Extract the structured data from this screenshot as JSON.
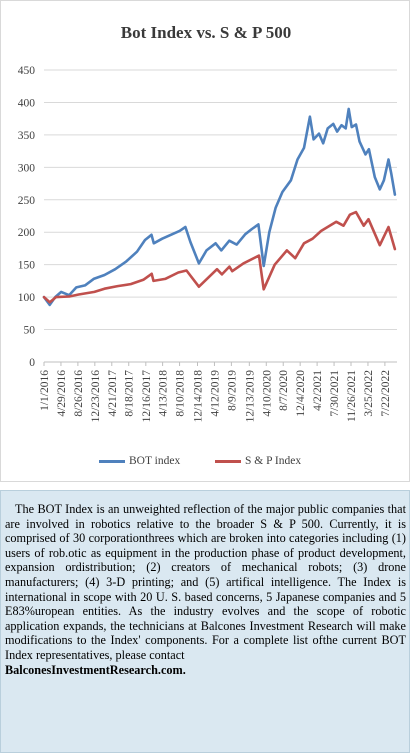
{
  "chart_data": {
    "type": "line",
    "title": "Bot Index vs. S & P 500",
    "xlabel": "",
    "ylabel": "",
    "ylim": [
      0,
      450
    ],
    "yticks": [
      0,
      50,
      100,
      150,
      200,
      250,
      300,
      350,
      400,
      450
    ],
    "grid": true,
    "legend_position": "bottom",
    "x_range": [
      "2016-01-01",
      "2022-10-15"
    ],
    "x_ticks": [
      "1/1/2016",
      "4/29/2016",
      "8/26/2016",
      "12/23/2016",
      "4/21/2017",
      "8/18/2017",
      "12/16/2017",
      "4/13/2018",
      "8/10/2018",
      "12/14/2018",
      "4/12/2019",
      "8/9/2019",
      "12/13/2019",
      "4/10/2020",
      "8/7/2020",
      "12/4/2020",
      "4/2/2021",
      "7/30/2021",
      "11/26/2021",
      "3/25/2022",
      "7/22/2022"
    ],
    "series": [
      {
        "name": "BOT index",
        "color": "#4f81bd",
        "points": [
          [
            "2016-01-01",
            100
          ],
          [
            "2016-02-10",
            88
          ],
          [
            "2016-03-20",
            100
          ],
          [
            "2016-05-01",
            108
          ],
          [
            "2016-06-25",
            103
          ],
          [
            "2016-08-15",
            115
          ],
          [
            "2016-10-15",
            118
          ],
          [
            "2016-12-15",
            128
          ],
          [
            "2017-03-01",
            134
          ],
          [
            "2017-05-15",
            143
          ],
          [
            "2017-08-01",
            155
          ],
          [
            "2017-10-15",
            170
          ],
          [
            "2017-12-10",
            188
          ],
          [
            "2018-01-25",
            196
          ],
          [
            "2018-02-10",
            183
          ],
          [
            "2018-04-10",
            190
          ],
          [
            "2018-06-10",
            196
          ],
          [
            "2018-08-10",
            202
          ],
          [
            "2018-09-20",
            208
          ],
          [
            "2018-10-25",
            185
          ],
          [
            "2018-12-24",
            152
          ],
          [
            "2019-02-15",
            172
          ],
          [
            "2019-04-20",
            183
          ],
          [
            "2019-05-30",
            172
          ],
          [
            "2019-07-25",
            187
          ],
          [
            "2019-09-15",
            181
          ],
          [
            "2019-11-15",
            197
          ],
          [
            "2019-12-31",
            205
          ],
          [
            "2020-02-15",
            212
          ],
          [
            "2020-03-23",
            148
          ],
          [
            "2020-05-01",
            200
          ],
          [
            "2020-06-15",
            238
          ],
          [
            "2020-08-01",
            262
          ],
          [
            "2020-09-30",
            280
          ],
          [
            "2020-11-15",
            312
          ],
          [
            "2020-12-31",
            330
          ],
          [
            "2021-02-10",
            378
          ],
          [
            "2021-03-08",
            343
          ],
          [
            "2021-04-15",
            352
          ],
          [
            "2021-05-15",
            337
          ],
          [
            "2021-06-15",
            360
          ],
          [
            "2021-07-25",
            367
          ],
          [
            "2021-08-20",
            355
          ],
          [
            "2021-09-20",
            365
          ],
          [
            "2021-10-20",
            360
          ],
          [
            "2021-11-10",
            390
          ],
          [
            "2021-12-01",
            362
          ],
          [
            "2021-12-31",
            366
          ],
          [
            "2022-01-25",
            340
          ],
          [
            "2022-03-08",
            320
          ],
          [
            "2022-04-01",
            328
          ],
          [
            "2022-05-12",
            285
          ],
          [
            "2022-06-16",
            266
          ],
          [
            "2022-07-15",
            280
          ],
          [
            "2022-08-16",
            312
          ],
          [
            "2022-09-05",
            290
          ],
          [
            "2022-09-30",
            258
          ]
        ]
      },
      {
        "name": "S & P Index",
        "color": "#c0504d",
        "points": [
          [
            "2016-01-01",
            100
          ],
          [
            "2016-02-11",
            92
          ],
          [
            "2016-03-25",
            100
          ],
          [
            "2016-06-27",
            101
          ],
          [
            "2016-09-01",
            104
          ],
          [
            "2016-12-20",
            108
          ],
          [
            "2017-03-01",
            113
          ],
          [
            "2017-06-01",
            117
          ],
          [
            "2017-09-01",
            120
          ],
          [
            "2017-12-01",
            127
          ],
          [
            "2018-01-26",
            136
          ],
          [
            "2018-02-08",
            125
          ],
          [
            "2018-05-01",
            128
          ],
          [
            "2018-08-01",
            138
          ],
          [
            "2018-09-28",
            141
          ],
          [
            "2018-12-24",
            116
          ],
          [
            "2019-04-30",
            143
          ],
          [
            "2019-06-03",
            135
          ],
          [
            "2019-07-26",
            147
          ],
          [
            "2019-08-15",
            140
          ],
          [
            "2019-11-01",
            152
          ],
          [
            "2020-02-19",
            164
          ],
          [
            "2020-03-23",
            112
          ],
          [
            "2020-06-08",
            150
          ],
          [
            "2020-09-02",
            172
          ],
          [
            "2020-10-30",
            160
          ],
          [
            "2020-12-31",
            183
          ],
          [
            "2021-03-01",
            190
          ],
          [
            "2021-05-01",
            202
          ],
          [
            "2021-08-15",
            216
          ],
          [
            "2021-10-04",
            210
          ],
          [
            "2021-11-18",
            227
          ],
          [
            "2021-12-31",
            231
          ],
          [
            "2022-02-23",
            210
          ],
          [
            "2022-03-29",
            220
          ],
          [
            "2022-06-16",
            180
          ],
          [
            "2022-08-16",
            208
          ],
          [
            "2022-09-30",
            174
          ]
        ]
      }
    ]
  },
  "legend": {
    "item1": "BOT index",
    "item2": "S & P Index"
  },
  "description": {
    "paragraph": "The BOT Index is an unweighted reflection of the major public companies that are involved in robotics relative to the broader S & P 500. Currently, it is comprised of 30 corporationthrees which are broken into categories including (1) users of rob.otic as equipment in the production phase of product development, expansion ordistribution; (2) creators of mechanical robots; (3) drone manufacturers; (4) 3-D printing; and (5) artifical intelligence. The Index is international in scope with 20 U. S. based concerns, 5 Japanese companies and 5 E83%uropean entities. As the industry evolves and the scope of robotic application expands, the technicians at Balcones Investment Research will make modifications to the Index' components. For a complete list ofthe current BOT Index representatives, please contact",
    "contact": "BalconesInvestmentResearch.com."
  }
}
